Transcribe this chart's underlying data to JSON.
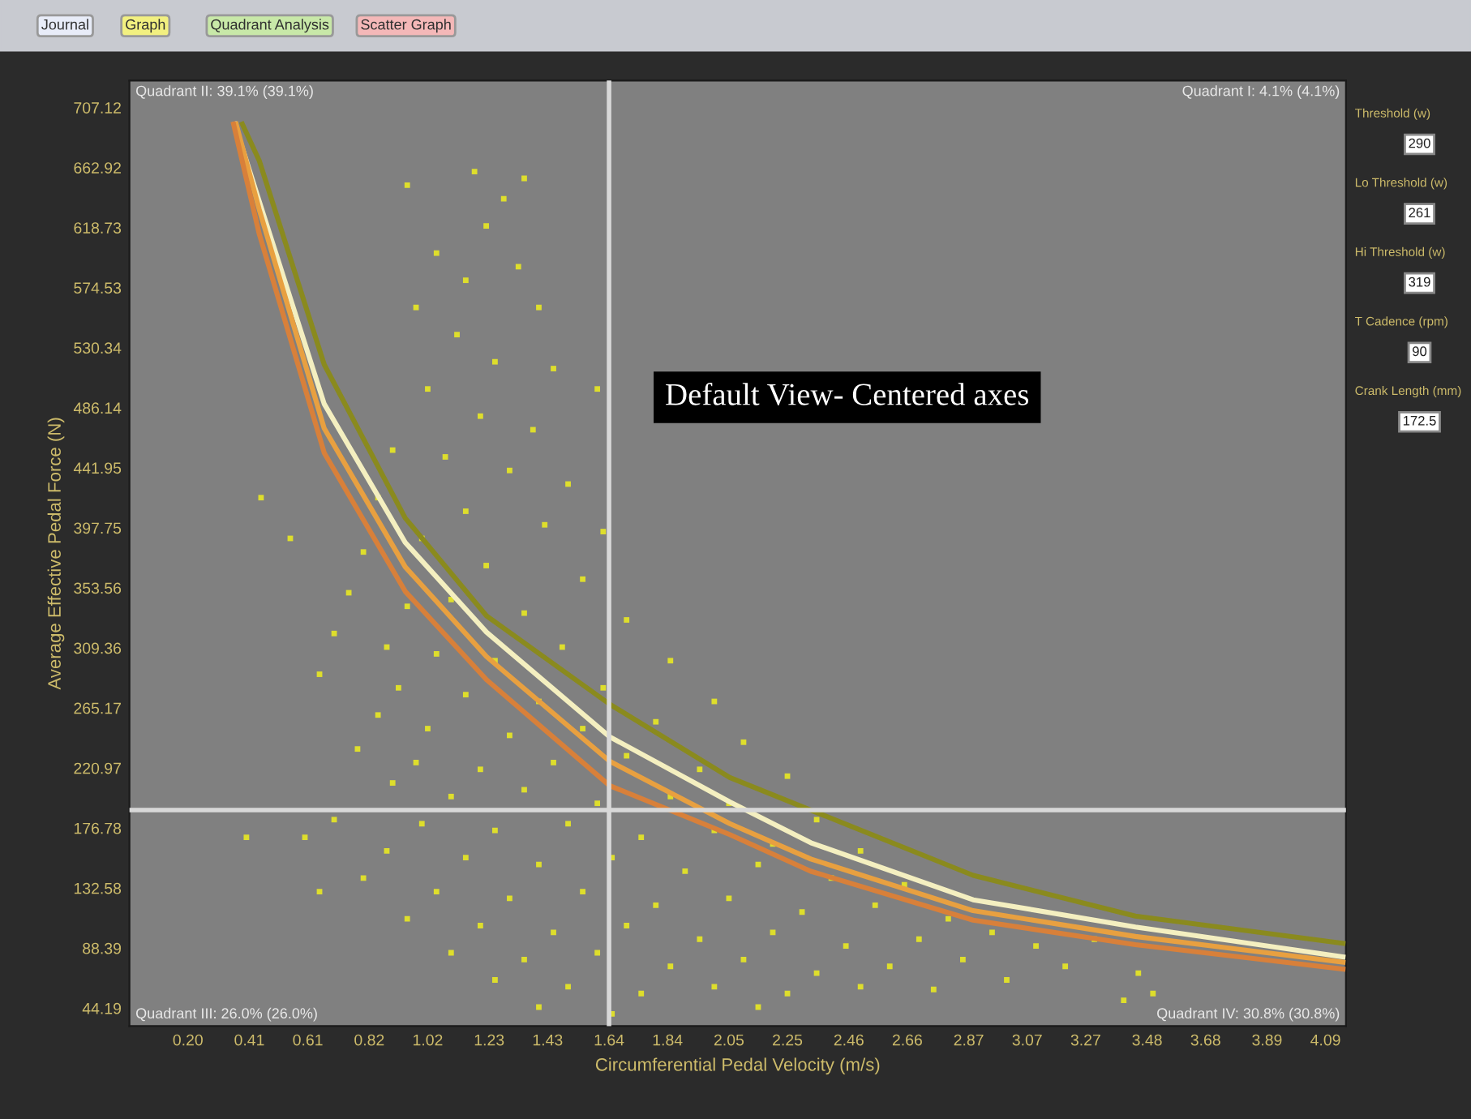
{
  "chart_data": {
    "type": "scatter",
    "xlabel": "Circumferential Pedal Velocity (m/s)",
    "ylabel": "Average Effective Pedal Force (N)",
    "xlim": [
      0,
      4.16
    ],
    "ylim": [
      31,
      727
    ],
    "xticks": [
      {
        "value": 0.2,
        "label": "0.20"
      },
      0.41,
      0.61,
      0.82,
      1.02,
      1.23,
      1.43,
      1.64,
      1.84,
      2.05,
      2.25,
      2.46,
      2.66,
      2.87,
      3.07,
      3.27,
      3.48,
      3.68,
      3.89,
      4.09
    ],
    "yticks": [
      44.19,
      88.39,
      132.58,
      176.78,
      220.97,
      265.17,
      309.36,
      353.56,
      397.75,
      441.95,
      486.14,
      530.34,
      574.53,
      618.73,
      662.92,
      707.12
    ],
    "grid": false,
    "legend": false,
    "series": [
      {
        "marker": "square",
        "color": "#dede2c",
        "x": [
          0.95,
          1.18,
          1.35,
          1.22,
          1.28,
          1.05,
          1.15,
          1.33,
          0.98,
          1.4,
          1.12,
          1.25,
          1.45,
          1.02,
          1.6,
          1.2,
          1.38,
          0.9,
          1.08,
          1.3,
          1.5,
          0.85,
          1.15,
          1.42,
          1.62,
          0.8,
          1.0,
          1.22,
          1.55,
          0.75,
          0.95,
          1.1,
          1.35,
          1.7,
          0.7,
          0.88,
          1.05,
          1.25,
          1.48,
          1.85,
          0.65,
          0.92,
          1.15,
          1.4,
          1.62,
          2.0,
          0.85,
          1.02,
          1.3,
          1.55,
          1.8,
          2.1,
          0.78,
          0.98,
          1.2,
          1.45,
          1.7,
          1.95,
          2.25,
          0.9,
          1.1,
          1.35,
          1.6,
          1.85,
          2.05,
          2.35,
          0.7,
          1.0,
          1.25,
          1.5,
          1.75,
          2.0,
          2.2,
          2.5,
          0.6,
          0.88,
          1.15,
          1.4,
          1.65,
          1.9,
          2.15,
          2.4,
          2.65,
          0.8,
          1.05,
          1.3,
          1.55,
          1.8,
          2.05,
          2.3,
          2.55,
          2.8,
          0.95,
          1.2,
          1.45,
          1.7,
          1.95,
          2.2,
          2.45,
          2.7,
          2.95,
          3.1,
          1.1,
          1.35,
          1.6,
          1.85,
          2.1,
          2.35,
          2.6,
          2.85,
          3.2,
          3.3,
          1.25,
          1.5,
          1.75,
          2.0,
          2.25,
          2.5,
          2.75,
          3.0,
          3.45,
          3.5,
          1.4,
          1.65,
          2.15,
          3.4,
          0.45,
          0.55,
          0.4,
          0.65
        ],
        "values": [
          650,
          660,
          655,
          620,
          640,
          600,
          580,
          590,
          560,
          560,
          540,
          520,
          515,
          500,
          500,
          480,
          470,
          455,
          450,
          440,
          430,
          420,
          410,
          400,
          395,
          380,
          390,
          370,
          360,
          350,
          340,
          345,
          335,
          330,
          320,
          310,
          305,
          300,
          310,
          300,
          290,
          280,
          275,
          270,
          280,
          270,
          260,
          250,
          245,
          250,
          255,
          240,
          235,
          225,
          220,
          225,
          230,
          220,
          215,
          210,
          200,
          205,
          195,
          200,
          195,
          183,
          183,
          180,
          175,
          180,
          170,
          175,
          165,
          160,
          170,
          160,
          155,
          150,
          155,
          145,
          150,
          140,
          135,
          140,
          130,
          125,
          130,
          120,
          125,
          115,
          120,
          110,
          110,
          105,
          100,
          105,
          95,
          100,
          90,
          95,
          100,
          90,
          85,
          80,
          85,
          75,
          80,
          70,
          75,
          80,
          75,
          95,
          65,
          60,
          55,
          60,
          55,
          60,
          58,
          65,
          70,
          55,
          45,
          40,
          45,
          50,
          420,
          390,
          170,
          130
        ]
      },
      {
        "type": "line",
        "color": "#8a8a1e",
        "x": [
          0.386,
          0.444,
          0.666,
          0.943,
          1.221,
          1.642,
          2.053,
          2.33,
          2.885,
          3.44,
          4.15
        ],
        "values": [
          695,
          668,
          518,
          405,
          333,
          268,
          214,
          190,
          142,
          112,
          92
        ]
      },
      {
        "type": "line",
        "color": "#f4efc0",
        "x": [
          0.36,
          0.444,
          0.666,
          0.943,
          1.221,
          1.642,
          2.053,
          2.33,
          2.885,
          3.44,
          4.15
        ],
        "values": [
          695,
          638,
          489,
          387,
          321,
          244,
          196,
          166,
          124,
          104,
          82
        ]
      },
      {
        "type": "line",
        "color": "#e8a040",
        "x": [
          0.365,
          0.444,
          0.666,
          0.943,
          1.221,
          1.642,
          2.053,
          2.33,
          2.885,
          3.44,
          4.15
        ],
        "values": [
          695,
          632,
          471,
          369,
          303,
          226,
          180,
          154,
          116,
          97,
          78
        ]
      },
      {
        "type": "line",
        "color": "#d8803a",
        "x": [
          0.356,
          0.444,
          0.666,
          0.943,
          1.221,
          1.642,
          2.053,
          2.33,
          2.885,
          3.44,
          4.15
        ],
        "values": [
          695,
          614,
          453,
          351,
          286,
          208,
          172,
          145,
          109,
          91,
          73
        ]
      }
    ],
    "ref_lines": [
      {
        "axis": "x",
        "value": 1.64,
        "color": "#d8d8d8"
      },
      {
        "axis": "y",
        "value": 190,
        "color": "#d8d8d8"
      }
    ],
    "annotations": [
      "Quadrant II: 39.1% (39.1%)",
      "Quadrant I: 4.1% (4.1%)",
      "Quadrant III: 26.0% (26.0%)",
      "Quadrant IV: 30.8% (30.8%)",
      "Default View- Centered axes",
      "Journal",
      "Graph",
      "Quadrant Analysis",
      "Scatter Graph",
      "Threshold (w)",
      "290",
      "Lo Threshold (w)",
      "261",
      "Hi Threshold (w)",
      "319",
      "T Cadence (rpm)",
      "90",
      "Crank Length (mm)",
      "172.5"
    ]
  }
}
